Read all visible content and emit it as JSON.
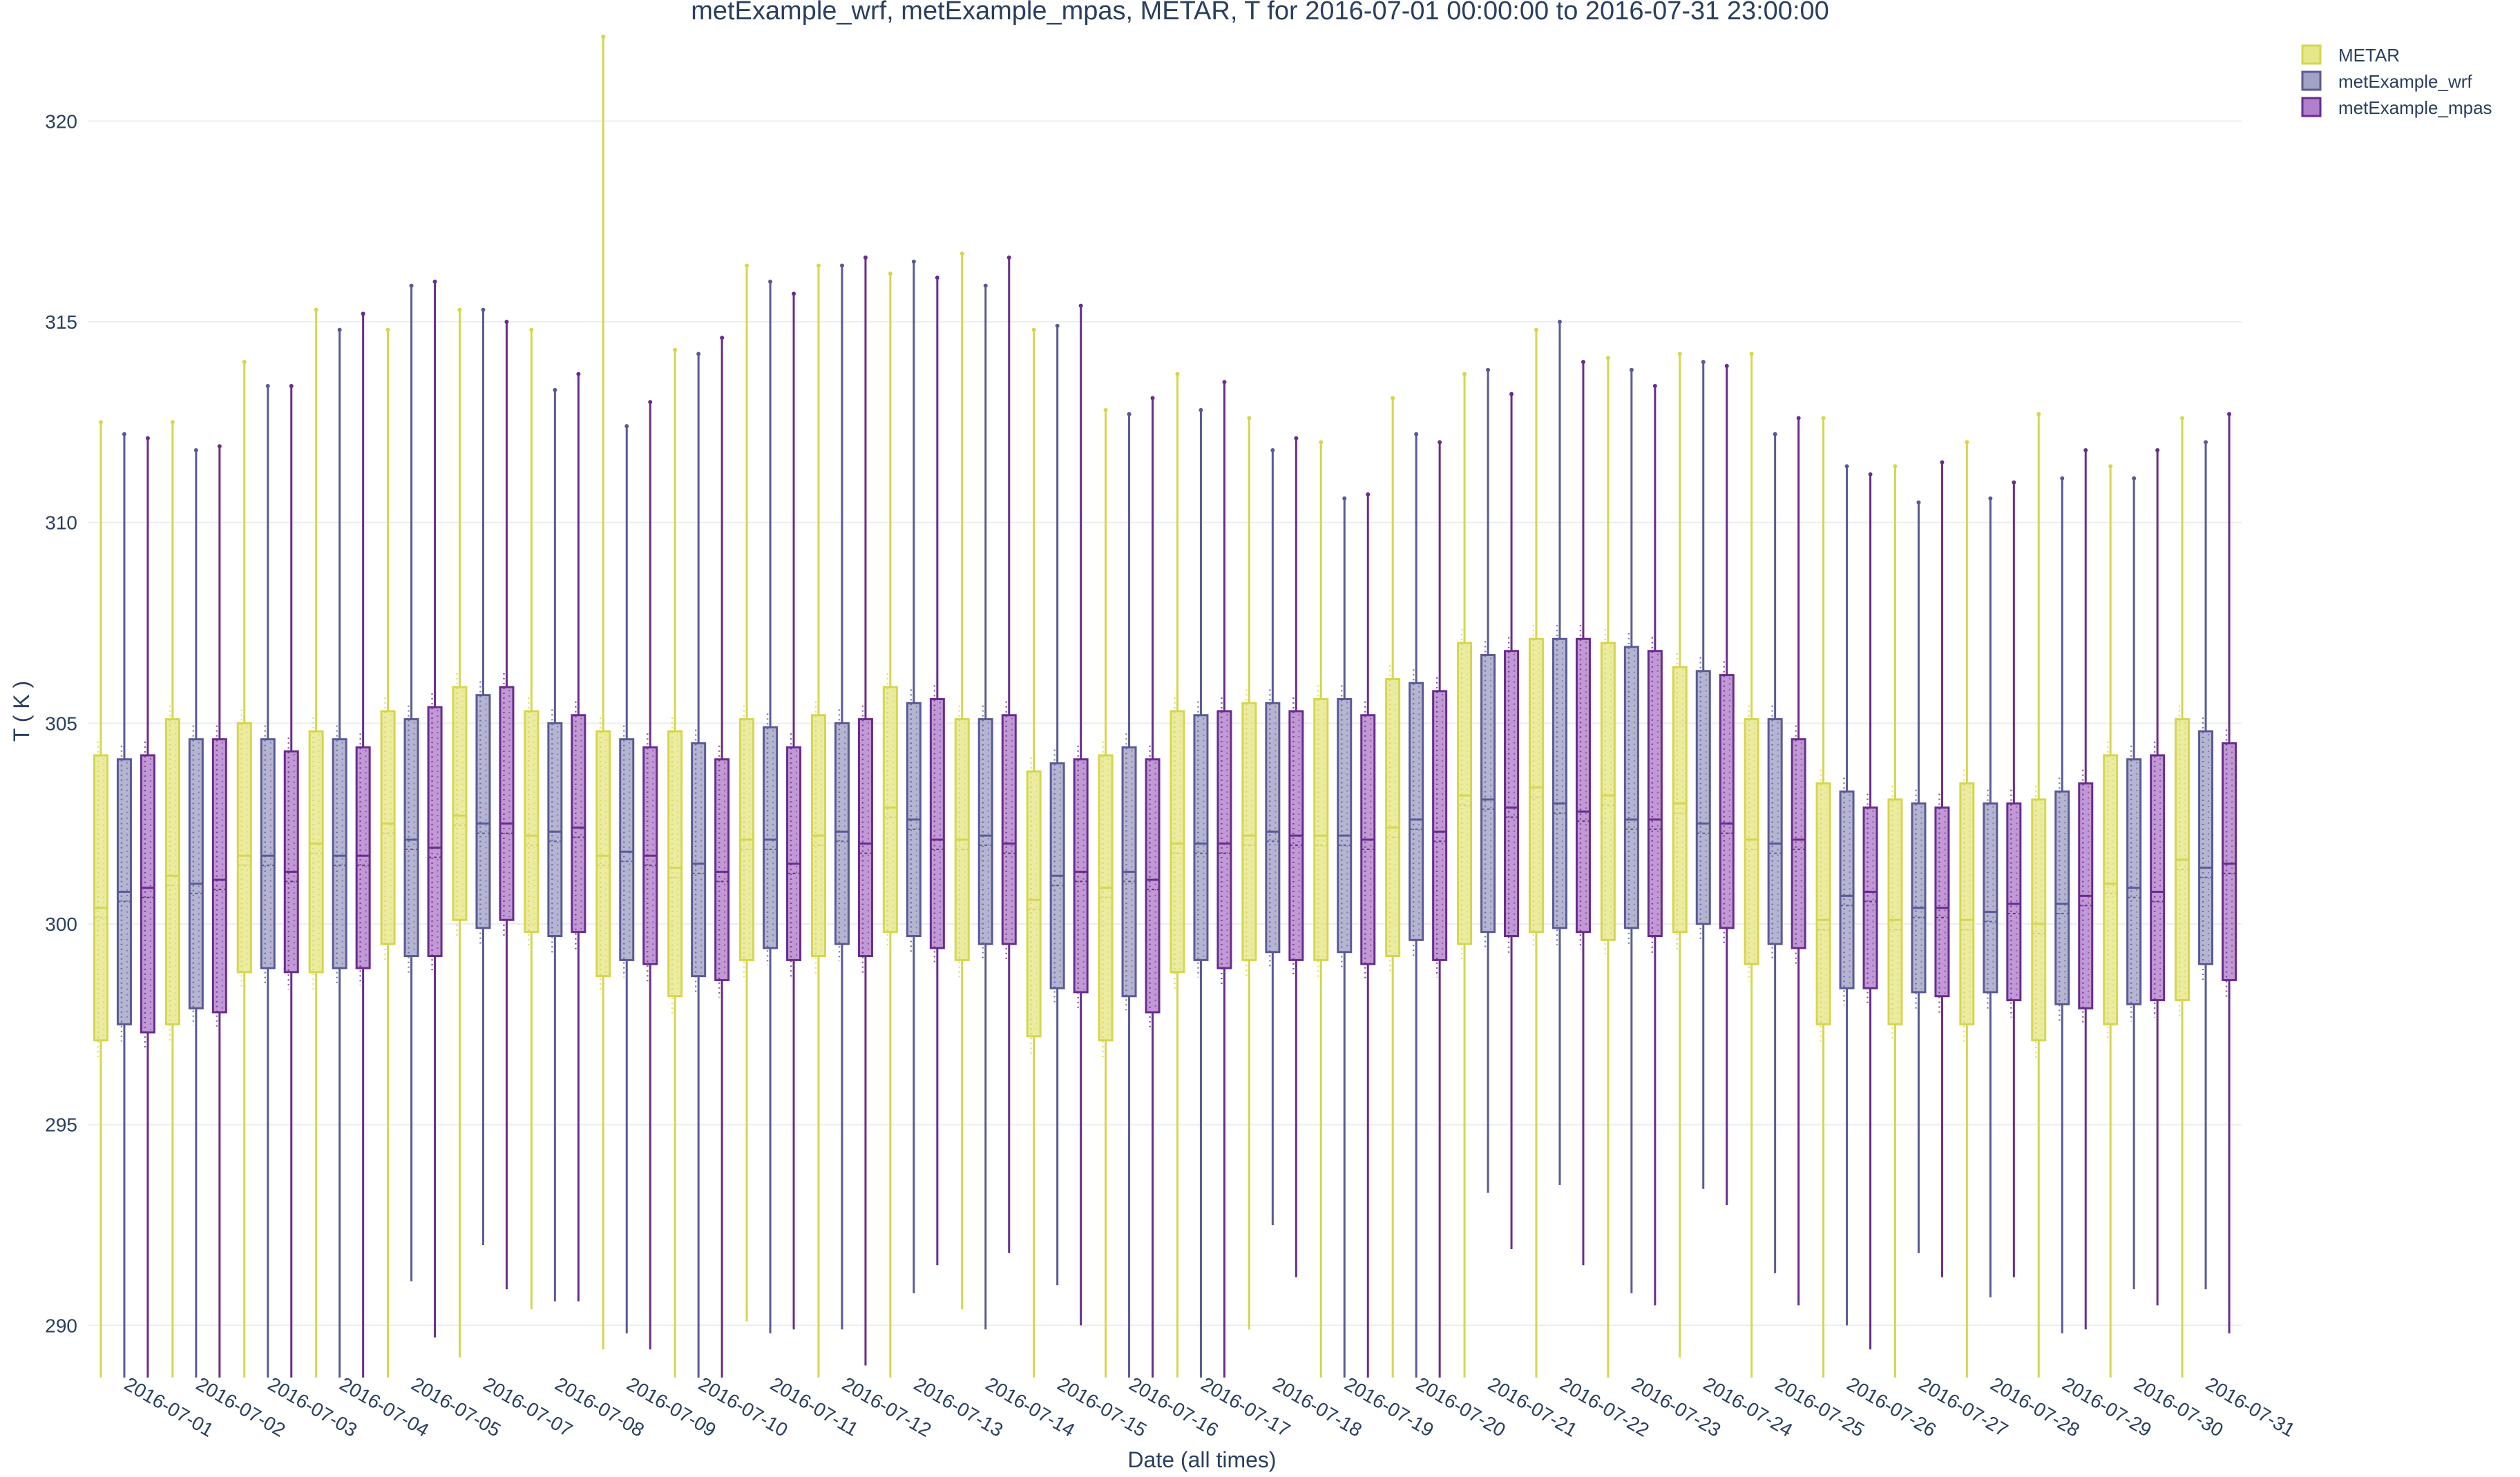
{
  "chart_data": {
    "type": "box",
    "title": "metExample_wrf, metExample_mpas, METAR, T for 2016-07-01 00:00:00 to 2016-07-31 23:00:00",
    "xlabel": "Date (all times)",
    "ylabel": "T ( K )",
    "ylim": [
      288.7,
      322.5
    ],
    "yticks": [
      290,
      295,
      300,
      305,
      310,
      315,
      320
    ],
    "grid": true,
    "legend_position": "top-right",
    "categories": [
      "2016-07-01",
      "2016-07-02",
      "2016-07-03",
      "2016-07-04",
      "2016-07-05",
      "2016-07-07",
      "2016-07-08",
      "2016-07-09",
      "2016-07-10",
      "2016-07-11",
      "2016-07-12",
      "2016-07-13",
      "2016-07-14",
      "2016-07-15",
      "2016-07-16",
      "2016-07-17",
      "2016-07-18",
      "2016-07-19",
      "2016-07-20",
      "2016-07-21",
      "2016-07-22",
      "2016-07-23",
      "2016-07-24",
      "2016-07-25",
      "2016-07-26",
      "2016-07-27",
      "2016-07-28",
      "2016-07-29",
      "2016-07-30",
      "2016-07-31"
    ],
    "series": [
      {
        "name": "METAR",
        "color": "#d6d64f",
        "fill": "#e6e68a",
        "q1": [
          297.1,
          297.5,
          298.8,
          298.8,
          299.5,
          300.1,
          299.8,
          298.7,
          298.2,
          299.1,
          299.2,
          299.8,
          299.1,
          297.2,
          297.1,
          298.8,
          299.1,
          299.1,
          299.2,
          299.5,
          299.8,
          299.6,
          299.8,
          299.0,
          297.5,
          297.5,
          297.5,
          297.1,
          297.5,
          298.1
        ],
        "median": [
          300.4,
          301.2,
          301.7,
          302.0,
          302.5,
          302.7,
          302.2,
          301.7,
          301.4,
          302.1,
          302.2,
          302.9,
          302.1,
          300.6,
          300.9,
          302.0,
          302.2,
          302.2,
          302.4,
          303.2,
          303.4,
          303.2,
          303.0,
          302.1,
          300.1,
          300.1,
          300.1,
          300.0,
          301.0,
          301.6
        ],
        "q3": [
          304.2,
          305.1,
          305.0,
          304.8,
          305.3,
          305.9,
          305.3,
          304.8,
          304.8,
          305.1,
          305.2,
          305.9,
          305.1,
          303.8,
          304.2,
          305.3,
          305.5,
          305.6,
          306.1,
          307.0,
          307.1,
          307.0,
          306.4,
          305.1,
          303.5,
          303.1,
          303.5,
          303.1,
          304.2,
          305.1
        ],
        "upper": [
          312.5,
          312.5,
          314.0,
          315.3,
          314.8,
          315.3,
          314.8,
          322.1,
          314.3,
          316.4,
          316.4,
          316.2,
          316.7,
          314.8,
          312.8,
          313.7,
          312.6,
          312.0,
          313.1,
          313.7,
          314.8,
          314.1,
          314.2,
          314.2,
          312.6,
          311.4,
          312.0,
          312.7,
          311.4,
          312.6
        ],
        "lower": [
          288.7,
          288.7,
          288.7,
          288.7,
          288.7,
          289.2,
          290.4,
          289.4,
          288.7,
          290.1,
          288.7,
          288.7,
          290.4,
          288.7,
          288.7,
          288.7,
          289.9,
          288.7,
          288.7,
          288.7,
          288.7,
          288.7,
          289.2,
          288.7,
          288.7,
          288.7,
          288.7,
          288.7,
          288.7,
          288.7
        ]
      },
      {
        "name": "metExample_wrf",
        "color": "#5a5a96",
        "fill": "#a2a2c7",
        "q1": [
          297.5,
          297.9,
          298.9,
          298.9,
          299.2,
          299.9,
          299.7,
          299.1,
          298.7,
          299.4,
          299.5,
          299.7,
          299.5,
          298.4,
          298.2,
          299.1,
          299.3,
          299.3,
          299.6,
          299.8,
          299.9,
          299.9,
          300.0,
          299.5,
          298.4,
          298.3,
          298.3,
          298.0,
          298.0,
          299.0
        ],
        "median": [
          300.8,
          301.0,
          301.7,
          301.7,
          302.1,
          302.5,
          302.3,
          301.8,
          301.5,
          302.1,
          302.3,
          302.6,
          302.2,
          301.2,
          301.3,
          302.0,
          302.3,
          302.2,
          302.6,
          303.1,
          303.0,
          302.6,
          302.5,
          302.0,
          300.7,
          300.4,
          300.3,
          300.5,
          300.9,
          301.4
        ],
        "q3": [
          304.1,
          304.6,
          304.6,
          304.6,
          305.1,
          305.7,
          305.0,
          304.6,
          304.5,
          304.9,
          305.0,
          305.5,
          305.1,
          304.0,
          304.4,
          305.2,
          305.5,
          305.6,
          306.0,
          306.7,
          307.1,
          306.9,
          306.3,
          305.1,
          303.3,
          303.0,
          303.0,
          303.3,
          304.1,
          304.8
        ],
        "upper": [
          312.2,
          311.8,
          313.4,
          314.8,
          315.9,
          315.3,
          313.3,
          312.4,
          314.2,
          316.0,
          316.4,
          316.5,
          315.9,
          314.9,
          312.7,
          312.8,
          311.8,
          310.6,
          312.2,
          313.8,
          315.0,
          313.8,
          314.0,
          312.2,
          311.4,
          310.5,
          310.6,
          311.1,
          311.1,
          312.0
        ],
        "lower": [
          288.7,
          288.7,
          288.7,
          288.7,
          291.1,
          292.0,
          290.6,
          289.8,
          288.7,
          289.8,
          289.9,
          290.8,
          289.9,
          291.0,
          288.7,
          288.7,
          292.5,
          288.7,
          288.7,
          293.3,
          293.5,
          290.8,
          293.4,
          291.3,
          290.0,
          291.8,
          290.7,
          289.8,
          290.9,
          290.9
        ]
      },
      {
        "name": "metExample_mpas",
        "color": "#6a2c8c",
        "fill": "#b17fcb",
        "q1": [
          297.3,
          297.8,
          298.8,
          298.9,
          299.2,
          300.1,
          299.8,
          299.0,
          298.6,
          299.1,
          299.2,
          299.4,
          299.5,
          298.3,
          297.8,
          298.9,
          299.1,
          299.0,
          299.1,
          299.7,
          299.8,
          299.7,
          299.9,
          299.4,
          298.4,
          298.2,
          298.1,
          297.9,
          298.1,
          298.6
        ],
        "median": [
          300.9,
          301.1,
          301.3,
          301.7,
          301.9,
          302.5,
          302.4,
          301.7,
          301.3,
          301.5,
          302.0,
          302.1,
          302.0,
          301.3,
          301.1,
          302.0,
          302.2,
          302.1,
          302.3,
          302.9,
          302.8,
          302.6,
          302.5,
          302.1,
          300.8,
          300.4,
          300.5,
          300.7,
          300.8,
          301.5
        ],
        "q3": [
          304.2,
          304.6,
          304.3,
          304.4,
          305.4,
          305.9,
          305.2,
          304.4,
          304.1,
          304.4,
          305.1,
          305.6,
          305.2,
          304.1,
          304.1,
          305.3,
          305.3,
          305.2,
          305.8,
          306.8,
          307.1,
          306.8,
          306.2,
          304.6,
          302.9,
          302.9,
          303.0,
          303.5,
          304.2,
          304.5
        ],
        "upper": [
          312.1,
          311.9,
          313.4,
          315.2,
          316.0,
          315.0,
          313.7,
          313.0,
          314.6,
          315.7,
          316.6,
          316.1,
          316.6,
          315.4,
          313.1,
          313.5,
          312.1,
          310.7,
          312.0,
          313.2,
          314.0,
          313.4,
          313.9,
          312.6,
          311.2,
          311.5,
          311.0,
          311.8,
          311.8,
          312.7
        ],
        "lower": [
          288.7,
          288.7,
          288.7,
          288.7,
          289.7,
          290.9,
          290.6,
          289.4,
          288.7,
          289.9,
          289.0,
          291.5,
          291.8,
          290.0,
          288.7,
          288.7,
          291.2,
          288.7,
          288.7,
          291.9,
          291.5,
          290.5,
          293.0,
          290.5,
          289.4,
          291.2,
          291.2,
          289.9,
          290.5,
          289.8
        ]
      }
    ]
  }
}
